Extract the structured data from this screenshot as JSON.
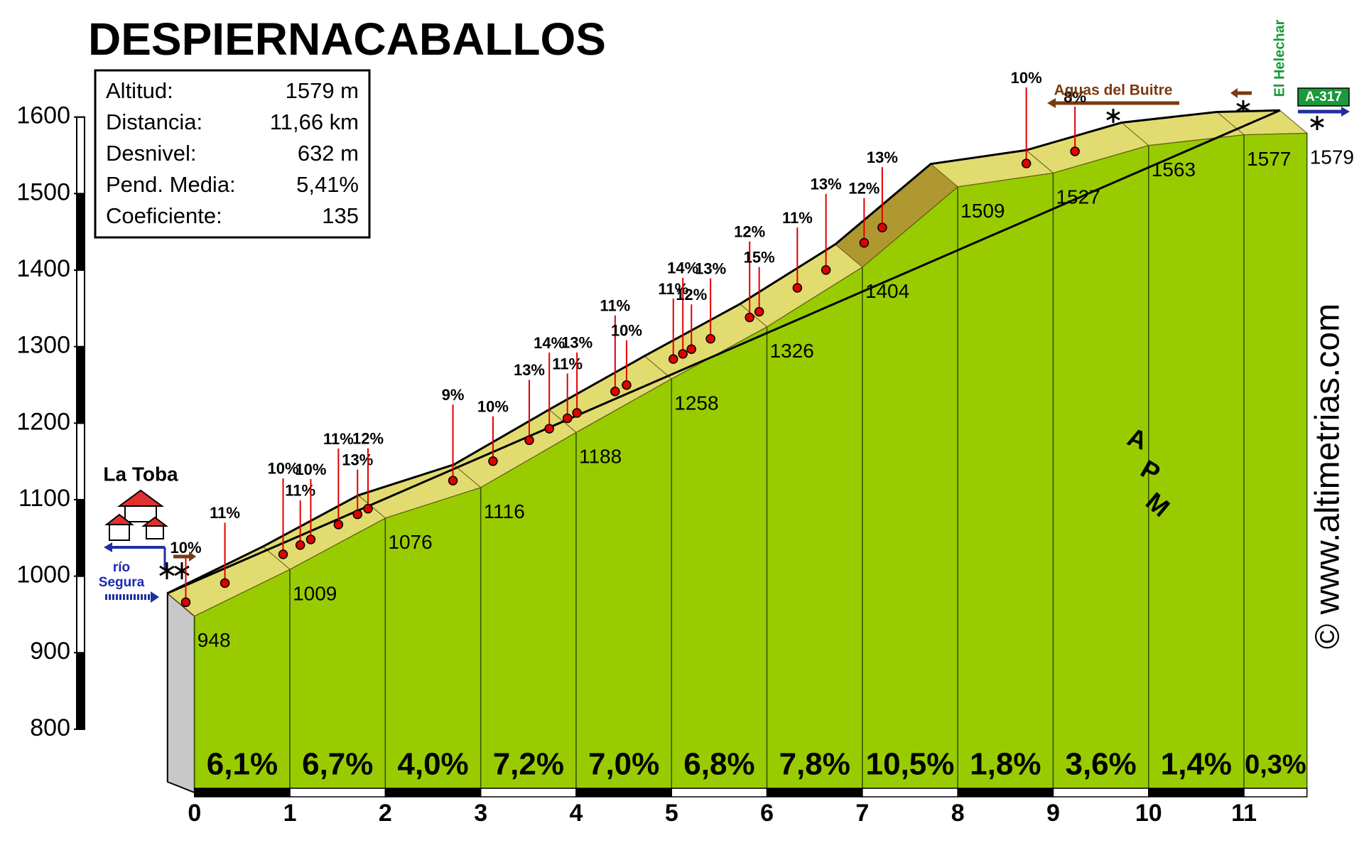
{
  "chart_data": {
    "type": "profile",
    "title": "DESPIERNACABALLOS",
    "info": [
      {
        "label": "Altitud:",
        "value": "1579 m"
      },
      {
        "label": "Distancia:",
        "value": "11,66 km"
      },
      {
        "label": "Desnivel:",
        "value": "632 m"
      },
      {
        "label": "Pend. Media:",
        "value": "5,41%"
      },
      {
        "label": "Coeficiente:",
        "value": "135"
      }
    ],
    "x": [
      0,
      1,
      2,
      3,
      4,
      5,
      6,
      7,
      8,
      9,
      10,
      11,
      11.66
    ],
    "values": [
      948,
      1009,
      1076,
      1116,
      1188,
      1258,
      1326,
      1404,
      1509,
      1527,
      1563,
      1577,
      1579
    ],
    "gradients": [
      6.1,
      6.7,
      4.0,
      7.2,
      7.0,
      6.8,
      7.8,
      10.5,
      1.8,
      3.6,
      1.4,
      0.3
    ],
    "gradient_labels": [
      "6,1%",
      "6,7%",
      "4,0%",
      "7,2%",
      "7,0%",
      "6,8%",
      "7,8%",
      "10,5%",
      "1,8%",
      "3,6%",
      "1,4%",
      "0,3%"
    ],
    "xlim": [
      0,
      11.66
    ],
    "xticks": [
      0,
      1,
      2,
      3,
      4,
      5,
      6,
      7,
      8,
      9,
      10,
      11
    ],
    "ylim": [
      800,
      1600
    ],
    "yticks": [
      800,
      900,
      1000,
      1100,
      1200,
      1300,
      1400,
      1500,
      1600
    ],
    "color": "#99cc00",
    "annotations": [
      {
        "x": 0.05,
        "label": "10%"
      },
      {
        "x": 0.46,
        "label": "11%"
      },
      {
        "x": 1.07,
        "label": "10%"
      },
      {
        "x": 1.25,
        "label": "11%"
      },
      {
        "x": 1.36,
        "label": "10%"
      },
      {
        "x": 1.65,
        "label": "11%"
      },
      {
        "x": 1.85,
        "label": "13%"
      },
      {
        "x": 1.96,
        "label": "12%"
      },
      {
        "x": 2.85,
        "label": "9%"
      },
      {
        "x": 3.27,
        "label": "10%"
      },
      {
        "x": 3.65,
        "label": "13%"
      },
      {
        "x": 3.86,
        "label": "14%"
      },
      {
        "x": 4.05,
        "label": "11%"
      },
      {
        "x": 4.15,
        "label": "13%"
      },
      {
        "x": 4.55,
        "label": "11%"
      },
      {
        "x": 4.67,
        "label": "10%"
      },
      {
        "x": 5.16,
        "label": "11%"
      },
      {
        "x": 5.26,
        "label": "14%"
      },
      {
        "x": 5.35,
        "label": "12%"
      },
      {
        "x": 5.55,
        "label": "13%"
      },
      {
        "x": 5.96,
        "label": "12%"
      },
      {
        "x": 6.06,
        "label": "15%"
      },
      {
        "x": 6.46,
        "label": "11%"
      },
      {
        "x": 6.76,
        "label": "13%"
      },
      {
        "x": 7.16,
        "label": "12%"
      },
      {
        "x": 7.35,
        "label": "13%"
      },
      {
        "x": 8.86,
        "label": "10%"
      },
      {
        "x": 9.37,
        "label": "8%"
      }
    ],
    "labels": {
      "start": "La Toba",
      "river_1": "río",
      "river_2": "Segura",
      "road_name": "Aguas del Buitre",
      "place": "El Helechar",
      "road_code": "A-317",
      "website": "© www.altimetrias.com",
      "logo_a": "A",
      "logo_p": "P",
      "logo_m": "M"
    }
  }
}
